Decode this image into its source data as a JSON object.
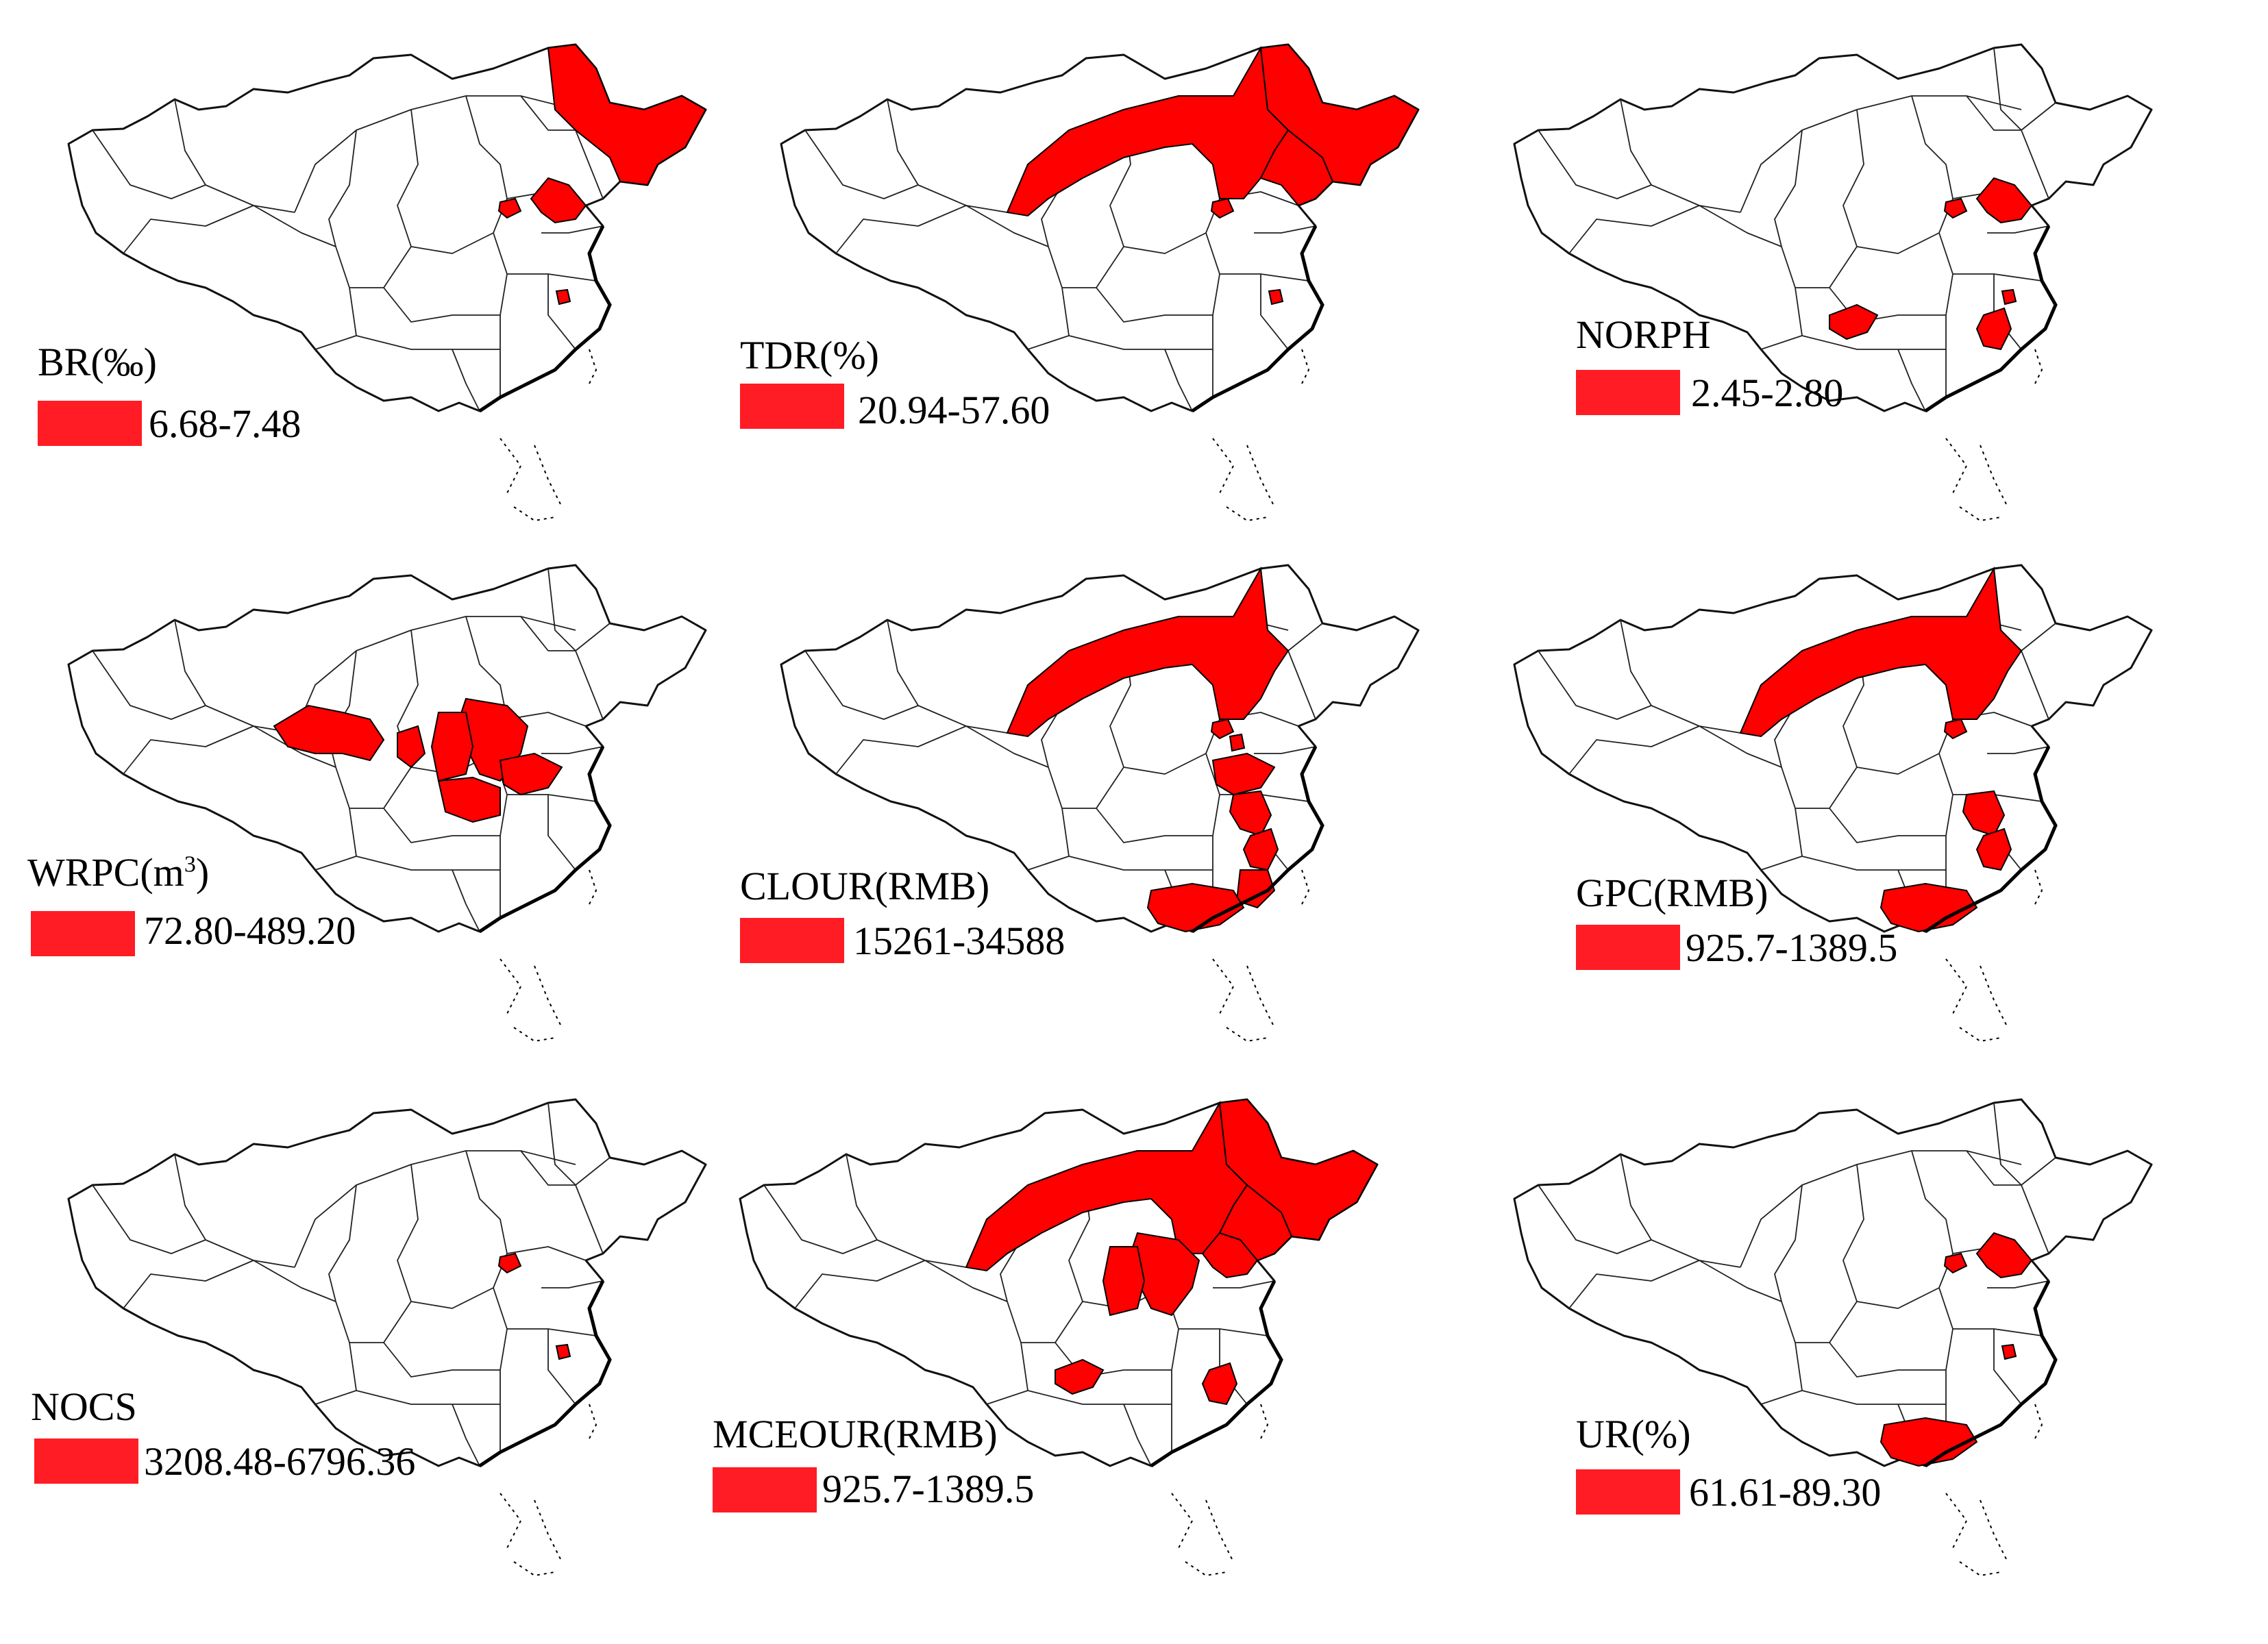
{
  "legend_color": "#ff1c24",
  "highlight_color": "#ff0000",
  "panels": [
    {
      "title": "BR(‰)",
      "range": "6.68-7.48",
      "regions": [
        "heilongjiang",
        "liaoning",
        "beijing",
        "shanghai"
      ]
    },
    {
      "title": "TDR(%)",
      "range": "20.94-57.60",
      "regions": [
        "inner-mongolia",
        "heilongjiang",
        "jilin",
        "beijing",
        "shanghai"
      ]
    },
    {
      "title": "NORPH",
      "range": "2.45-2.80",
      "regions": [
        "liaoning",
        "beijing",
        "chongqing",
        "zhejiang",
        "shanghai"
      ]
    },
    {
      "title": "WRPC(m",
      "title_sup": "3",
      "title_end": ")",
      "range": "72.80-489.20",
      "regions": [
        "ningxia",
        "inner-mongolia-west",
        "hebei",
        "shanxi",
        "shandong",
        "henan"
      ]
    },
    {
      "title": "CLOUR(RMB)",
      "range": "15261-34588",
      "regions": [
        "inner-mongolia",
        "beijing",
        "tianjin",
        "shandong",
        "jiangsu",
        "zhejiang",
        "fujian",
        "guangdong"
      ]
    },
    {
      "title": "GPC(RMB)",
      "range": "925.7-1389.5",
      "regions": [
        "inner-mongolia",
        "beijing",
        "jiangsu",
        "zhejiang",
        "guangdong"
      ]
    },
    {
      "title": "NOCS",
      "range": "3208.48-6796.36",
      "regions": [
        "beijing",
        "shanghai"
      ]
    },
    {
      "title": "MCEOUR(RMB)",
      "range": "925.7-1389.5",
      "regions": [
        "inner-mongolia",
        "heilongjiang",
        "jilin",
        "liaoning",
        "hebei",
        "shanxi",
        "chongqing",
        "zhejiang"
      ]
    },
    {
      "title": "UR(%)",
      "range": "61.61-89.30",
      "regions": [
        "liaoning",
        "beijing",
        "guangdong",
        "shanghai"
      ]
    }
  ]
}
